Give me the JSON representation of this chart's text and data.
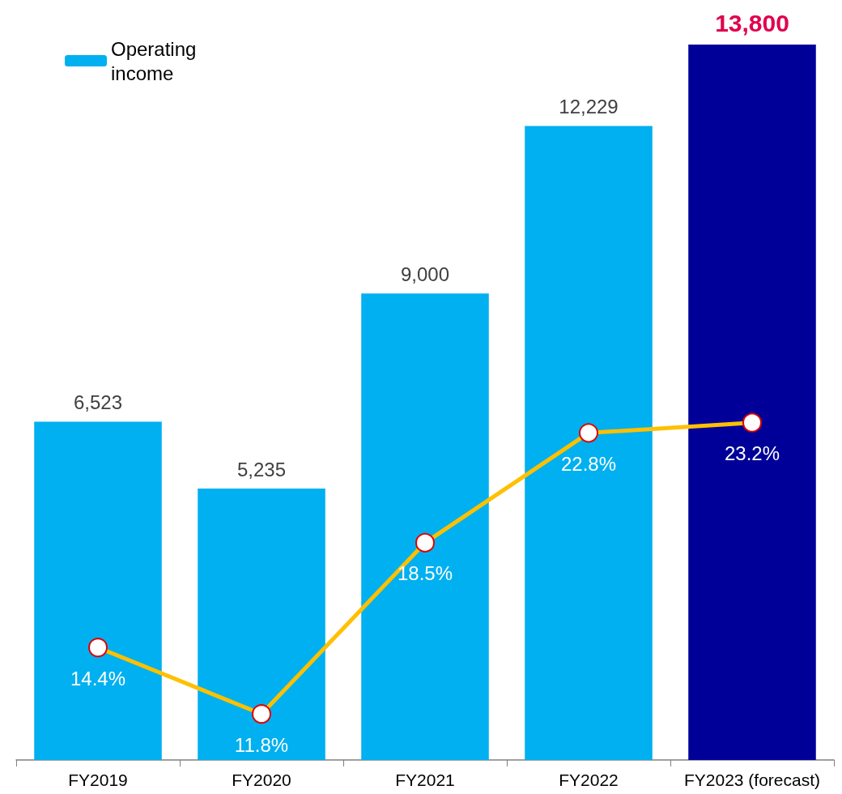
{
  "chart_data": {
    "type": "bar",
    "categories": [
      "FY2019",
      "FY2020",
      "FY2021",
      "FY2022",
      "FY2023 (forecast)"
    ],
    "series": [
      {
        "name": "Operating income",
        "color": "#00b0f0",
        "colors": [
          "#00b0f0",
          "#00b0f0",
          "#00b0f0",
          "#00b0f0",
          "#000099"
        ],
        "values": [
          6523,
          5235,
          9000,
          12229,
          13800
        ],
        "value_labels": [
          "6,523",
          "5,235",
          "9,000",
          "12,229",
          "13,800"
        ]
      },
      {
        "type": "line",
        "axis": "y2",
        "color": "#ffc000",
        "values": [
          14.4,
          11.8,
          18.5,
          22.8,
          23.2
        ],
        "value_labels": [
          "14.4%",
          "11.8%",
          "18.5%",
          "22.8%",
          "23.2%"
        ]
      }
    ],
    "ylim": [
      0,
      13800
    ],
    "y2lim": [
      10,
      38
    ],
    "tick_labels": "x",
    "legend": "top left",
    "marker": "circle",
    "line_style": "solid"
  }
}
